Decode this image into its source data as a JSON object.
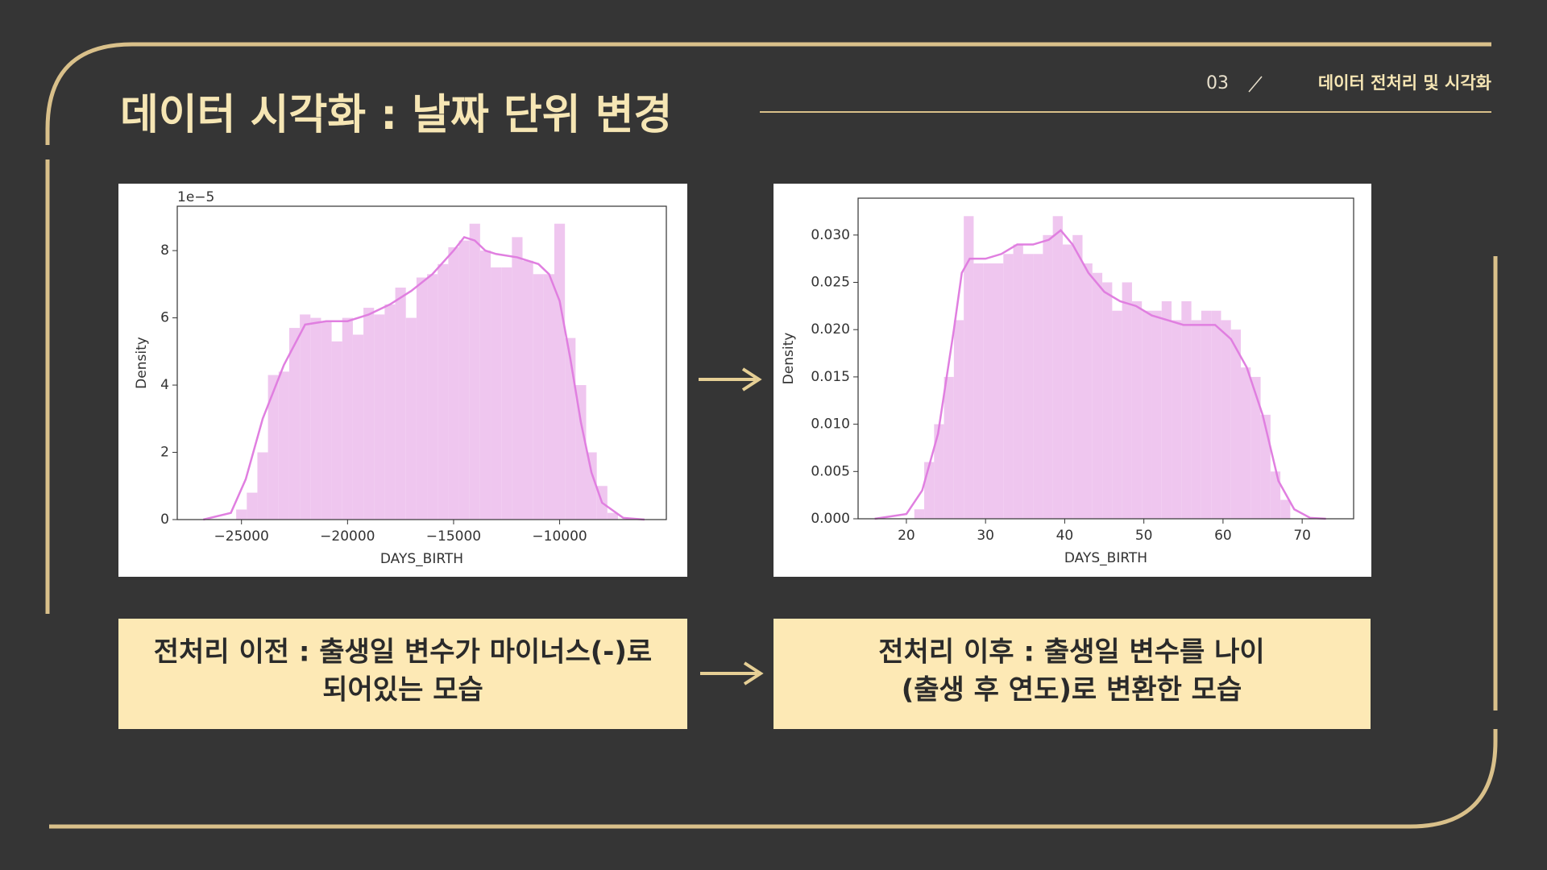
{
  "header": {
    "title": "데이터 시각화 : 날짜 단위 변경",
    "page_number": "03",
    "section": "데이터 전처리 및 시각화"
  },
  "chart_data": [
    {
      "type": "histogram",
      "xlabel": "DAYS_BIRTH",
      "ylabel": "Density",
      "offset_text": "1e−5",
      "bins": [
        -25250,
        -24750,
        -24250,
        -23750,
        -23250,
        -22750,
        -22250,
        -21750,
        -21250,
        -20750,
        -20250,
        -19750,
        -19250,
        -18750,
        -18250,
        -17750,
        -17250,
        -16750,
        -16250,
        -15750,
        -15250,
        -14750,
        -14250,
        -13750,
        -13250,
        -12750,
        -12250,
        -11750,
        -11250,
        -10750,
        -10250,
        -9750,
        -9250,
        -8750,
        -8250,
        -7750,
        -7250
      ],
      "values": [
        0.3,
        0.8,
        2.0,
        4.3,
        4.4,
        5.7,
        6.1,
        6.0,
        5.9,
        5.3,
        6.0,
        5.5,
        6.3,
        6.1,
        6.4,
        6.9,
        6.0,
        7.2,
        7.3,
        7.6,
        8.1,
        8.3,
        8.8,
        8.0,
        7.5,
        7.5,
        8.4,
        7.7,
        7.3,
        7.3,
        8.8,
        5.4,
        4.0,
        2.0,
        1.0,
        0.2
      ],
      "color": "#efc6ef",
      "kde": {
        "x": [
          -26800,
          -25500,
          -24800,
          -24000,
          -23000,
          -22000,
          -21000,
          -20000,
          -19000,
          -18000,
          -17000,
          -16000,
          -15000,
          -14500,
          -14000,
          -13500,
          -13000,
          -12000,
          -11000,
          -10500,
          -10000,
          -9500,
          -9000,
          -8500,
          -8000,
          -7000,
          -6000
        ],
        "values": [
          0,
          0.2,
          1.2,
          3.0,
          4.6,
          5.8,
          5.9,
          5.9,
          6.1,
          6.4,
          6.8,
          7.3,
          8.0,
          8.4,
          8.3,
          8.0,
          7.9,
          7.8,
          7.6,
          7.3,
          6.5,
          4.8,
          2.9,
          1.4,
          0.5,
          0.05,
          0
        ],
        "color": "#e07fe0"
      },
      "xlim": [
        -28028,
        -4970
      ],
      "ylim": [
        0,
        9.32
      ],
      "xticks": [
        {
          "value": -25000,
          "label": "−25000"
        },
        {
          "value": -20000,
          "label": "−20000"
        },
        {
          "value": -15000,
          "label": "−15000"
        },
        {
          "value": -10000,
          "label": "−10000"
        }
      ],
      "yticks": [
        0,
        2,
        4,
        6,
        8
      ]
    },
    {
      "type": "histogram",
      "xlabel": "DAYS_BIRTH",
      "ylabel": "Density",
      "bins": [
        21,
        22.25,
        23.5,
        24.75,
        26,
        27.25,
        28.5,
        29.75,
        31,
        32.25,
        33.5,
        34.75,
        36,
        37.25,
        38.5,
        39.75,
        41,
        42.25,
        43.5,
        44.75,
        46,
        47.25,
        48.5,
        49.75,
        51,
        52.25,
        53.5,
        54.75,
        56,
        57.25,
        58.5,
        59.75,
        61,
        62.25,
        63.5,
        64.75,
        66,
        67.25,
        68.5
      ],
      "values": [
        0.001,
        0.006,
        0.01,
        0.015,
        0.021,
        0.032,
        0.027,
        0.027,
        0.027,
        0.028,
        0.029,
        0.028,
        0.028,
        0.03,
        0.032,
        0.029,
        0.03,
        0.027,
        0.026,
        0.025,
        0.022,
        0.025,
        0.023,
        0.022,
        0.022,
        0.023,
        0.021,
        0.023,
        0.021,
        0.022,
        0.022,
        0.021,
        0.02,
        0.016,
        0.015,
        0.011,
        0.005,
        0.002
      ],
      "color": "#efc6ef",
      "kde": {
        "x": [
          16,
          20,
          22,
          24,
          26,
          27,
          28,
          30,
          32,
          34,
          36,
          38,
          39.5,
          41,
          43,
          45,
          47,
          49,
          51,
          53,
          55,
          57,
          59,
          61,
          63,
          65,
          67,
          69,
          71,
          73
        ],
        "values": [
          0,
          0.0005,
          0.003,
          0.009,
          0.02,
          0.026,
          0.0275,
          0.0275,
          0.028,
          0.029,
          0.029,
          0.0295,
          0.0305,
          0.029,
          0.026,
          0.024,
          0.023,
          0.0225,
          0.0215,
          0.021,
          0.0205,
          0.0205,
          0.0205,
          0.019,
          0.016,
          0.011,
          0.004,
          0.001,
          0.0001,
          0
        ],
        "color": "#e07fe0"
      },
      "xlim": [
        13.9,
        76.5
      ],
      "ylim": [
        0,
        0.0339
      ],
      "xticks": [
        20,
        30,
        40,
        50,
        60,
        70
      ],
      "yticks": [
        {
          "value": 0,
          "label": "0.000"
        },
        {
          "value": 0.005,
          "label": "0.005"
        },
        {
          "value": 0.01,
          "label": "0.010"
        },
        {
          "value": 0.015,
          "label": "0.015"
        },
        {
          "value": 0.02,
          "label": "0.020"
        },
        {
          "value": 0.025,
          "label": "0.025"
        },
        {
          "value": 0.03,
          "label": "0.030"
        }
      ]
    }
  ],
  "captions": [
    {
      "lines": [
        "전처리 이전 : 출생일 변수가 마이너스(-)로",
        "되어있는 모습"
      ]
    },
    {
      "lines": [
        "전처리 이후 : 출생일 변수를 나이",
        "(출생 후 연도)로 변환한 모습"
      ]
    }
  ]
}
